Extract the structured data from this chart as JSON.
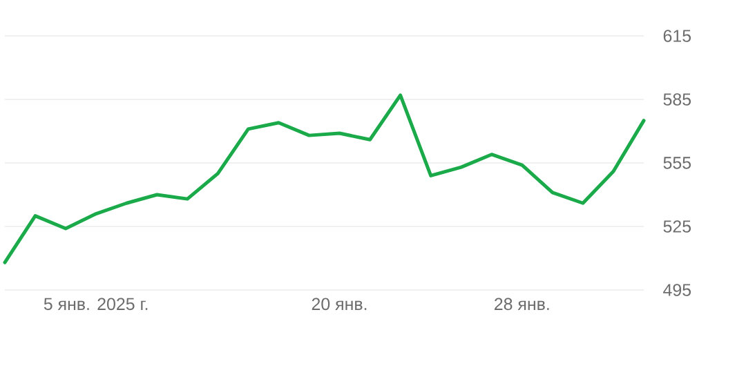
{
  "chart_data": {
    "type": "line",
    "categories": [
      null,
      null,
      null,
      "5 янв. 2025 г.",
      null,
      null,
      null,
      null,
      null,
      null,
      null,
      "20 янв.",
      null,
      null,
      null,
      null,
      null,
      "28 янв.",
      null,
      null,
      null,
      null
    ],
    "values": [
      508,
      530,
      524,
      531,
      536,
      540,
      538,
      550,
      571,
      574,
      568,
      569,
      566,
      587,
      549,
      553,
      559,
      554,
      541,
      536,
      551,
      575
    ],
    "color": "#1aaa4a",
    "ylim": [
      495,
      615
    ],
    "yticks": [
      495,
      525,
      555,
      585,
      615
    ],
    "grid": "y"
  }
}
